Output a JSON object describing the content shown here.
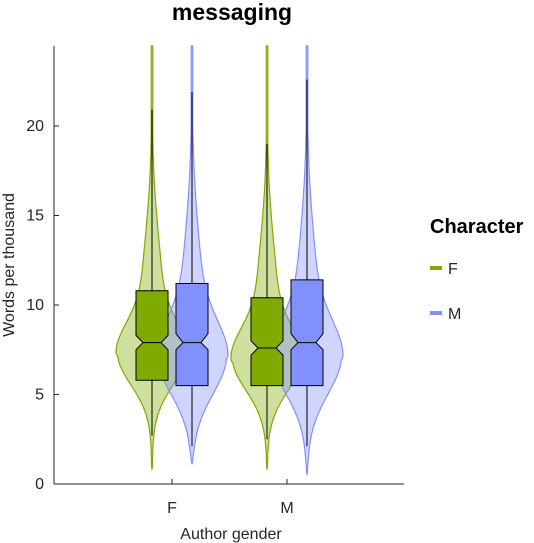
{
  "chart_data": {
    "type": "violin",
    "title": "messaging",
    "xlabel": "Author gender",
    "ylabel": "Words per thousand",
    "categories": [
      "F",
      "M"
    ],
    "yticks": [
      0,
      5,
      10,
      15,
      20
    ],
    "ylim": [
      0,
      24.5
    ],
    "grid": false,
    "legend": {
      "title": "Character",
      "position": "right",
      "entries": [
        "F",
        "M"
      ]
    },
    "series": [
      {
        "name": "F",
        "color": "#7faa00",
        "groups": [
          {
            "category": "F",
            "min": 0.8,
            "max": 24.5,
            "whisker_low": 2.7,
            "whisker_high": 20.9,
            "q1": 5.8,
            "median": 7.9,
            "q3": 10.8,
            "notch_low": 7.5,
            "notch_high": 8.3
          },
          {
            "category": "M",
            "min": 0.8,
            "max": 24.5,
            "whisker_low": 2.5,
            "whisker_high": 19.0,
            "q1": 5.5,
            "median": 7.6,
            "q3": 10.4,
            "notch_low": 7.2,
            "notch_high": 8.0
          }
        ]
      },
      {
        "name": "M",
        "color": "#8090ff",
        "groups": [
          {
            "category": "F",
            "min": 1.1,
            "max": 24.5,
            "whisker_low": 2.1,
            "whisker_high": 21.9,
            "q1": 5.5,
            "median": 7.9,
            "q3": 11.2,
            "notch_low": 7.5,
            "notch_high": 8.4
          },
          {
            "category": "M",
            "min": 0.5,
            "max": 24.5,
            "whisker_low": 2.1,
            "whisker_high": 22.6,
            "q1": 5.5,
            "median": 7.9,
            "q3": 11.4,
            "notch_low": 7.5,
            "notch_high": 8.4
          }
        ]
      }
    ]
  }
}
